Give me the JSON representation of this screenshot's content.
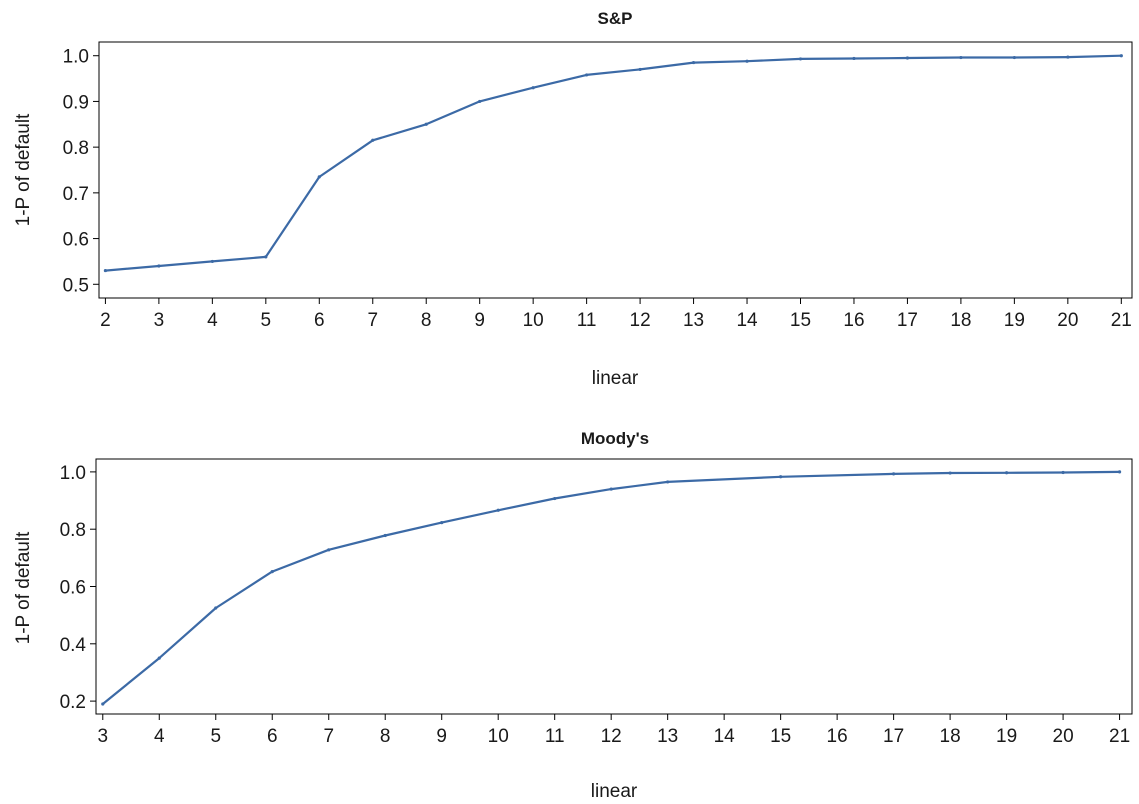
{
  "chart_data": [
    {
      "type": "line",
      "title": "S&P",
      "xlabel": "linear",
      "ylabel": "1-P of default",
      "x": [
        2,
        3,
        4,
        5,
        6,
        7,
        8,
        9,
        10,
        11,
        12,
        13,
        14,
        15,
        16,
        17,
        18,
        19,
        20,
        21
      ],
      "series": [
        {
          "values": [
            0.53,
            0.54,
            0.55,
            0.56,
            0.735,
            0.815,
            0.85,
            0.9,
            0.93,
            0.958,
            0.97,
            0.985,
            0.988,
            0.993,
            0.994,
            0.995,
            0.996,
            0.996,
            0.997,
            1.0
          ]
        }
      ],
      "xticks": [
        "2",
        "3",
        "4",
        "5",
        "6",
        "7",
        "8",
        "9",
        "10",
        "11",
        "12",
        "13",
        "14",
        "15",
        "16",
        "17",
        "18",
        "19",
        "20",
        "21"
      ],
      "yticks": [
        "0.5",
        "0.6",
        "0.7",
        "0.8",
        "0.9",
        "1.0"
      ],
      "xlim": [
        1.88,
        21.2
      ],
      "ylim": [
        0.47,
        1.03
      ],
      "grid": false,
      "color": "#3c6aa6"
    },
    {
      "type": "line",
      "title": "Moody's",
      "xlabel": "linear",
      "ylabel": "1-P of default",
      "x": [
        3,
        4,
        5,
        6,
        7,
        8,
        9,
        10,
        11,
        12,
        13,
        15,
        17,
        18,
        19,
        20,
        21
      ],
      "series": [
        {
          "values": [
            0.19,
            0.35,
            0.525,
            0.652,
            0.728,
            0.778,
            0.823,
            0.866,
            0.907,
            0.94,
            0.965,
            0.983,
            0.993,
            0.996,
            0.997,
            0.998,
            1.0
          ]
        }
      ],
      "xticks": [
        "3",
        "4",
        "5",
        "6",
        "7",
        "8",
        "9",
        "10",
        "11",
        "12",
        "13",
        "14",
        "15",
        "16",
        "17",
        "18",
        "19",
        "20",
        "21"
      ],
      "yticks": [
        "0.2",
        "0.4",
        "0.6",
        "0.8",
        "1.0"
      ],
      "xlim": [
        2.88,
        21.22
      ],
      "ylim": [
        0.155,
        1.045
      ],
      "grid": false,
      "color": "#3c6aa6"
    }
  ]
}
